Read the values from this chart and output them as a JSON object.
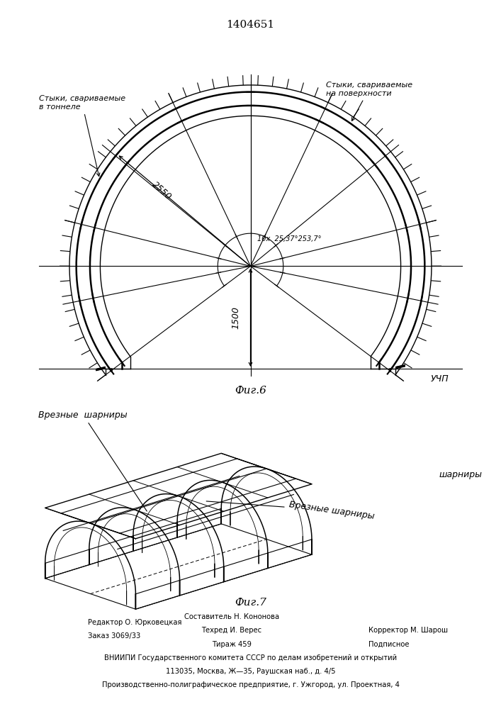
{
  "patent_number": "1404651",
  "fig6_label": "Фиг.6",
  "fig7_label": "Фиг.7",
  "label_left": "Стыки, свариваемые\nв тоннеле",
  "label_right": "Стыки, свариваемые\nна поверхности",
  "dim_2550": "2550",
  "dim_1500": "1500",
  "angle_label": "10x  25,37°253,7°",
  "uchp_label": "УЧП",
  "label_vrezn1": "Врезные  шарниры",
  "label_vrezn2": "Врезные шарниры",
  "label_sharni": "шарниры",
  "footer_col1_line1": "Редактор О. Юрковецкая",
  "footer_col1_line2": "Заказ 3069/33",
  "footer_col2_line1": "Составитель Н. Кононова",
  "footer_col2_line2": "Техред И. Верес",
  "footer_col2_line3": "Тираж 459",
  "footer_col3_line1": "Корректор М. Шарош",
  "footer_col3_line2": "Подписное",
  "footer_line4": "ВНИИПИ Государственного комитета СССР по делам изобретений и открытий",
  "footer_line5": "113035, Москва, Ж—35, Раушская наб., д. 4/5",
  "footer_line6": "Производственно-полиграфическое предприятие, г. Ужгород, ул. Проектная, 4",
  "bg_color": "#ffffff",
  "line_color": "#000000"
}
